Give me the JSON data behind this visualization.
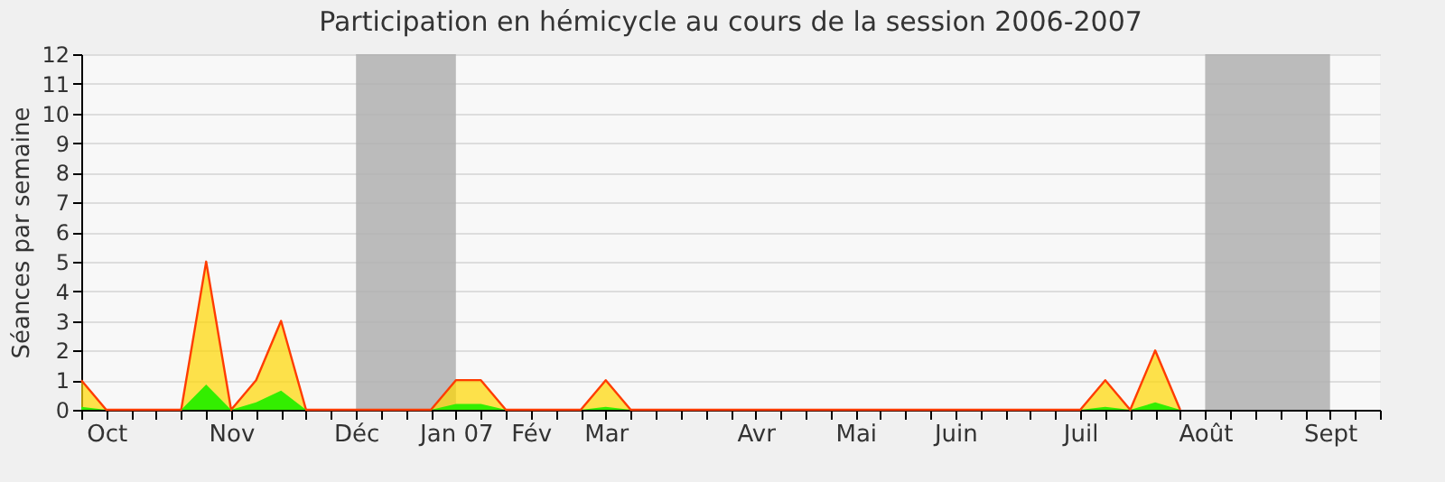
{
  "chart_data": {
    "type": "area",
    "title": "Participation en hémicycle au cours de la session 2006-2007",
    "ylabel": "Séances par semaine",
    "categories": [
      null,
      "Oct",
      null,
      null,
      null,
      null,
      "Nov",
      null,
      null,
      null,
      null,
      "Déc",
      null,
      null,
      null,
      "Jan 07",
      null,
      null,
      "Fév",
      null,
      null,
      "Mar",
      null,
      null,
      null,
      null,
      null,
      "Avr",
      null,
      null,
      null,
      "Mai",
      null,
      null,
      null,
      "Juin",
      null,
      null,
      null,
      null,
      "Juil",
      null,
      null,
      null,
      null,
      "Août",
      null,
      null,
      null,
      null,
      "Sept",
      null,
      null
    ],
    "series": [
      {
        "color": "#ffd700",
        "values": [
          1,
          0,
          0,
          0,
          0,
          5,
          0,
          1,
          3,
          0,
          0,
          0,
          0,
          0,
          0,
          1,
          1,
          0,
          0,
          0,
          0,
          1,
          0,
          0,
          0,
          0,
          0,
          0,
          0,
          0,
          0,
          0,
          0,
          0,
          0,
          0,
          0,
          0,
          0,
          0,
          0,
          1,
          0,
          2,
          0,
          null,
          null,
          null,
          null,
          null,
          null,
          null,
          null
        ]
      },
      {
        "color": "#33ee00",
        "values": [
          0.1,
          0,
          0,
          0,
          0,
          0.85,
          0,
          0.25,
          0.65,
          0,
          0,
          0,
          0,
          0,
          0,
          0.2,
          0.2,
          0,
          0,
          0,
          0,
          0.1,
          0,
          0,
          0,
          0,
          0,
          0,
          0,
          0,
          0,
          0,
          0,
          0,
          0,
          0,
          0,
          0,
          0,
          0,
          0,
          0.1,
          0,
          0.25,
          0,
          null,
          null,
          null,
          null,
          null,
          null,
          null,
          null
        ]
      }
    ],
    "ylim": [
      0,
      12
    ],
    "yticks": [
      0,
      1,
      2,
      3,
      4,
      5,
      6,
      7,
      8,
      9,
      10,
      11,
      12
    ],
    "bands": [
      {
        "axis": "x",
        "from": "Déc",
        "to": "Jan 07",
        "color": "#b0b0b0"
      },
      {
        "axis": "x",
        "from": "Août",
        "to": "Sept",
        "color": "#b0b0b0"
      }
    ],
    "grid": "y"
  }
}
